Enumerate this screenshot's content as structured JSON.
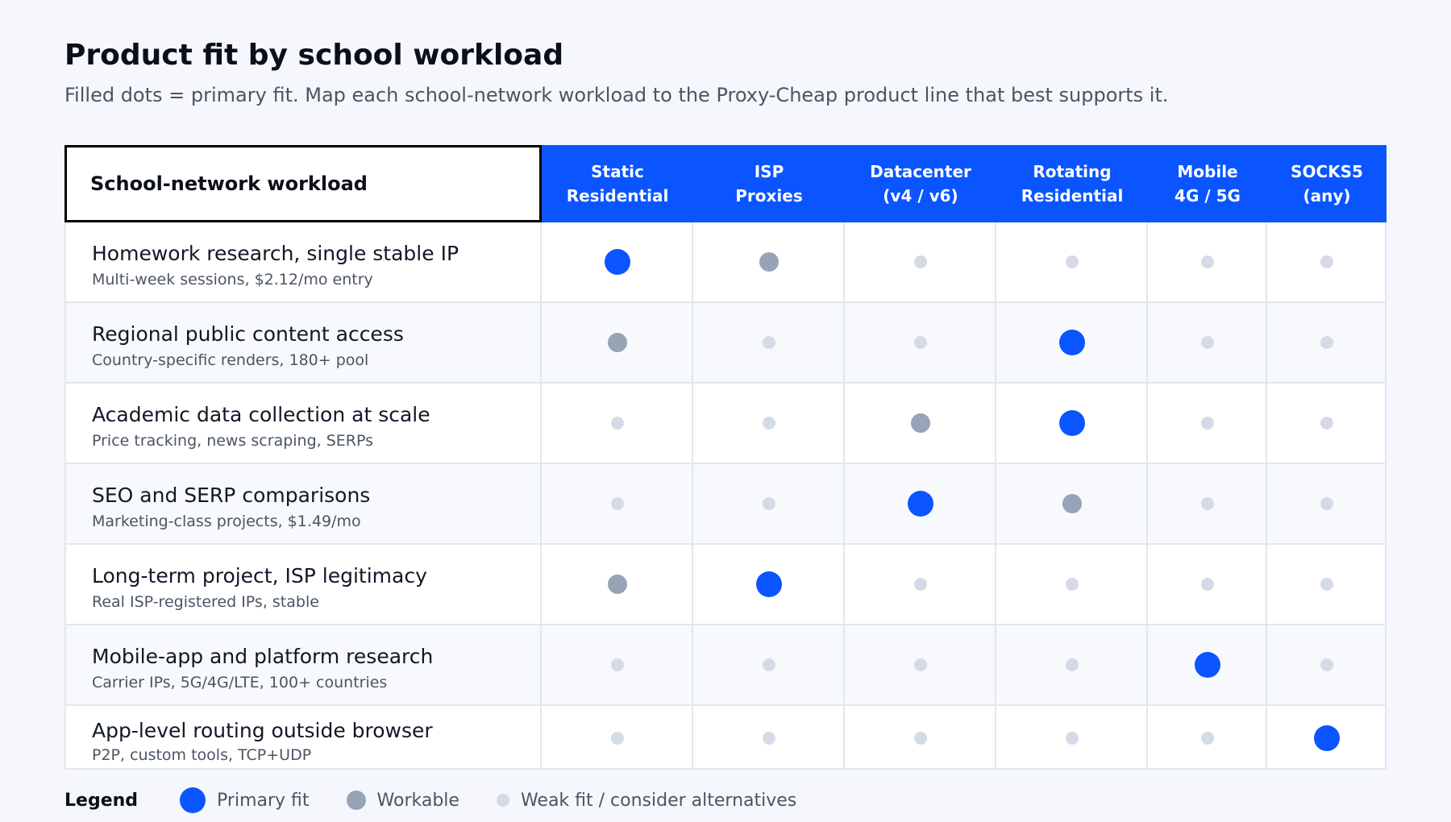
{
  "chart_data": {
    "type": "table",
    "title": "Product fit by school workload",
    "subtitle": "Filled dots = primary fit. Map each school-network workload to the Proxy-Cheap product line that best supports it.",
    "row_header": "School-network workload",
    "columns": [
      {
        "line1": "Static",
        "line2": "Residential"
      },
      {
        "line1": "ISP",
        "line2": "Proxies"
      },
      {
        "line1": "Datacenter",
        "line2": "(v4 / v6)"
      },
      {
        "line1": "Rotating",
        "line2": "Residential"
      },
      {
        "line1": "Mobile",
        "line2": "4G / 5G"
      },
      {
        "line1": "SOCKS5",
        "line2": "(any)"
      }
    ],
    "rows": [
      {
        "name": "Homework research, single stable IP",
        "detail": "Multi-week sessions, $2.12/mo entry",
        "fit": [
          3,
          2,
          1,
          1,
          1,
          1
        ]
      },
      {
        "name": "Regional public content access",
        "detail": "Country-specific renders, 180+ pool",
        "fit": [
          2,
          1,
          1,
          3,
          1,
          1
        ]
      },
      {
        "name": "Academic data collection at scale",
        "detail": "Price tracking, news scraping, SERPs",
        "fit": [
          1,
          1,
          2,
          3,
          1,
          1
        ]
      },
      {
        "name": "SEO and SERP comparisons",
        "detail": "Marketing-class projects, $1.49/mo",
        "fit": [
          1,
          1,
          3,
          2,
          1,
          1
        ]
      },
      {
        "name": "Long-term project, ISP legitimacy",
        "detail": "Real ISP-registered IPs, stable",
        "fit": [
          2,
          3,
          1,
          1,
          1,
          1
        ]
      },
      {
        "name": "Mobile-app and platform research",
        "detail": "Carrier IPs, 5G/4G/LTE, 100+ countries",
        "fit": [
          1,
          1,
          1,
          1,
          3,
          1
        ]
      },
      {
        "name": "App-level routing outside browser",
        "detail": "P2P, custom tools, TCP+UDP",
        "fit": [
          1,
          1,
          1,
          1,
          1,
          3
        ]
      }
    ],
    "fit_levels": {
      "3": "Primary fit",
      "2": "Workable",
      "1": "Weak fit / consider alternatives"
    },
    "colors": {
      "primary": "#0a55ff",
      "workable": "#97a3b6",
      "weak": "#d4dbe6",
      "header_bg": "#0a55ff"
    }
  },
  "legend": {
    "title": "Legend",
    "items": [
      "Primary fit",
      "Workable",
      "Weak fit / consider alternatives"
    ]
  }
}
